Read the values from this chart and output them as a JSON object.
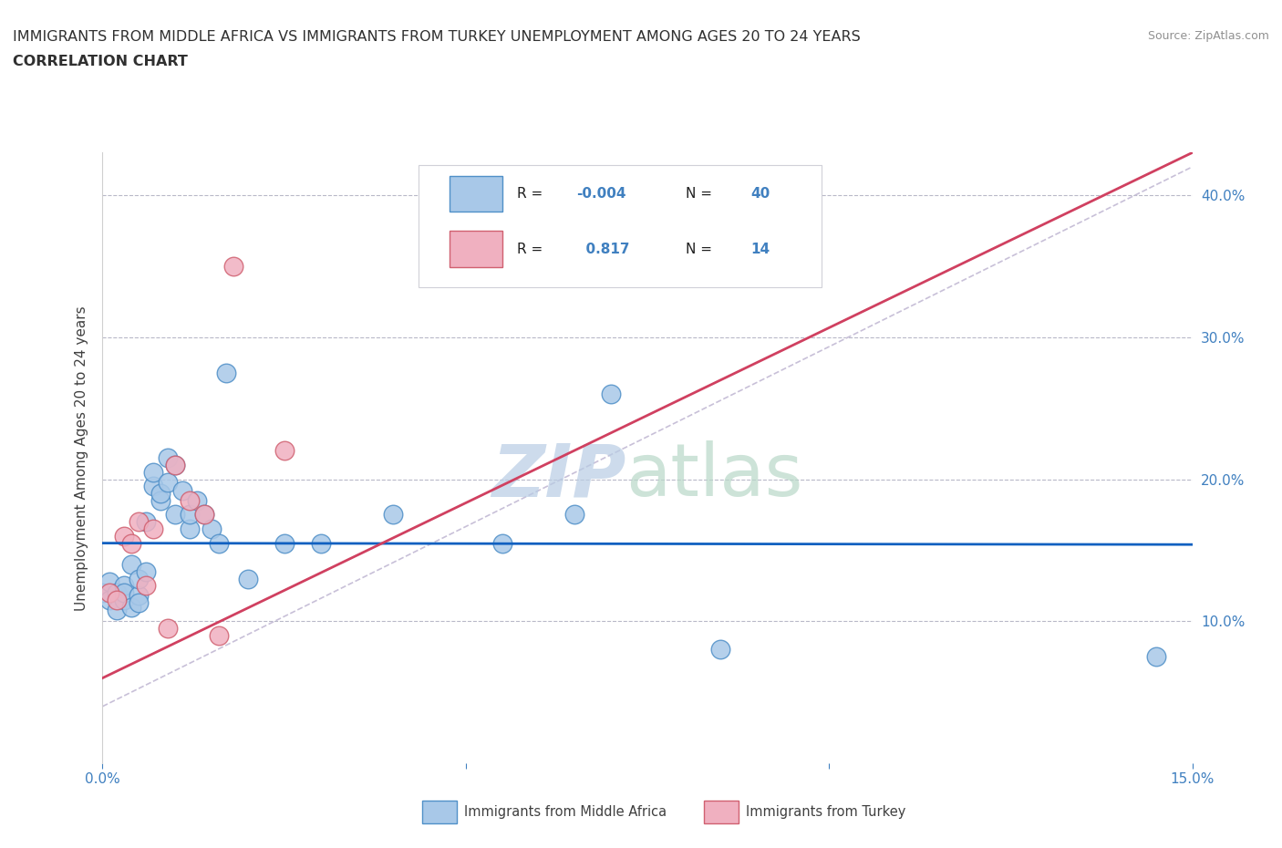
{
  "title_line1": "IMMIGRANTS FROM MIDDLE AFRICA VS IMMIGRANTS FROM TURKEY UNEMPLOYMENT AMONG AGES 20 TO 24 YEARS",
  "title_line2": "CORRELATION CHART",
  "source_text": "Source: ZipAtlas.com",
  "ylabel": "Unemployment Among Ages 20 to 24 years",
  "xlim": [
    0.0,
    0.15
  ],
  "ylim": [
    0.0,
    0.43
  ],
  "yticks": [
    0.1,
    0.2,
    0.3,
    0.4
  ],
  "ytick_labels": [
    "10.0%",
    "20.0%",
    "30.0%",
    "40.0%"
  ],
  "xtick_positions": [
    0.0,
    0.05,
    0.1,
    0.15
  ],
  "xtick_labels": [
    "0.0%",
    "",
    "",
    "15.0%"
  ],
  "blue_r": "-0.004",
  "blue_n": "40",
  "pink_r": "0.817",
  "pink_n": "14",
  "legend_label1": "Immigrants from Middle Africa",
  "legend_label2": "Immigrants from Turkey",
  "blue_color": "#a8c8e8",
  "blue_edge": "#5090c8",
  "pink_color": "#f0b0c0",
  "pink_edge": "#d06070",
  "blue_line_color": "#1060c0",
  "pink_line_color": "#d04060",
  "diag_line_color": "#c8c0d8",
  "tick_color": "#4080c0",
  "watermark_zip_color": "#b8cce4",
  "watermark_atlas_color": "#b8d8c8",
  "blue_scatter_x": [
    0.0,
    0.001,
    0.001,
    0.002,
    0.002,
    0.003,
    0.003,
    0.003,
    0.004,
    0.004,
    0.005,
    0.005,
    0.005,
    0.006,
    0.006,
    0.007,
    0.007,
    0.008,
    0.008,
    0.009,
    0.009,
    0.01,
    0.01,
    0.011,
    0.012,
    0.012,
    0.013,
    0.014,
    0.015,
    0.016,
    0.017,
    0.02,
    0.025,
    0.03,
    0.04,
    0.055,
    0.065,
    0.07,
    0.085,
    0.145
  ],
  "blue_scatter_y": [
    0.12,
    0.115,
    0.128,
    0.12,
    0.108,
    0.115,
    0.125,
    0.12,
    0.14,
    0.11,
    0.118,
    0.13,
    0.113,
    0.135,
    0.17,
    0.195,
    0.205,
    0.185,
    0.19,
    0.198,
    0.215,
    0.21,
    0.175,
    0.192,
    0.165,
    0.175,
    0.185,
    0.175,
    0.165,
    0.155,
    0.275,
    0.13,
    0.155,
    0.155,
    0.175,
    0.155,
    0.175,
    0.26,
    0.08,
    0.075
  ],
  "pink_scatter_x": [
    0.001,
    0.002,
    0.003,
    0.004,
    0.005,
    0.006,
    0.007,
    0.009,
    0.01,
    0.012,
    0.014,
    0.016,
    0.018,
    0.025
  ],
  "pink_scatter_y": [
    0.12,
    0.115,
    0.16,
    0.155,
    0.17,
    0.125,
    0.165,
    0.095,
    0.21,
    0.185,
    0.175,
    0.09,
    0.35,
    0.22
  ],
  "blue_trend_x": [
    0.0,
    0.15
  ],
  "blue_trend_y": [
    0.155,
    0.154
  ],
  "pink_trend_x": [
    0.0,
    0.15
  ],
  "pink_trend_y": [
    0.06,
    0.43
  ],
  "diag_line_x": [
    0.0,
    0.15
  ],
  "diag_line_y": [
    0.04,
    0.42
  ]
}
